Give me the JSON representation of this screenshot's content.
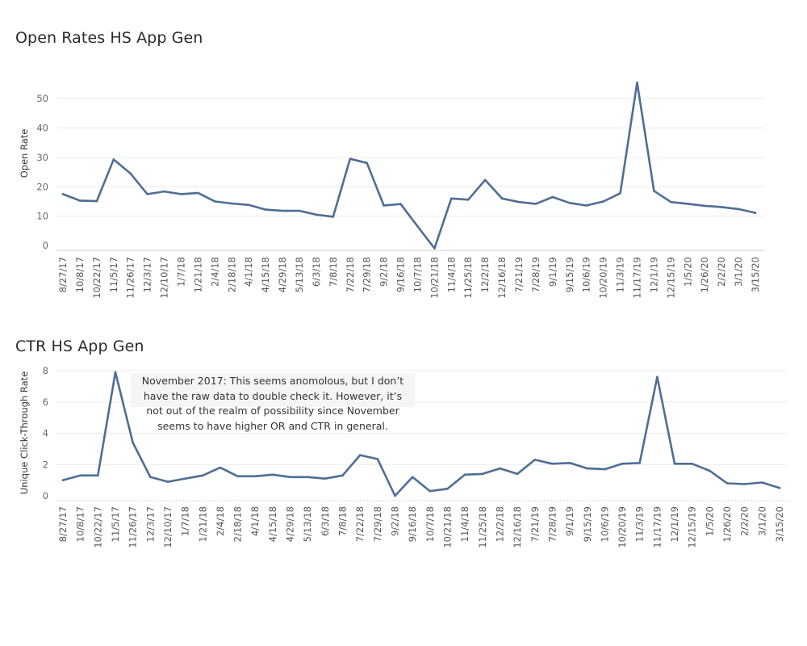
{
  "chart_data": [
    {
      "type": "line",
      "title": "Open Rates HS App Gen",
      "xlabel": "",
      "ylabel": "Open Rate",
      "ylim": [
        0,
        55
      ],
      "yticks": [
        0,
        10,
        20,
        30,
        40,
        50
      ],
      "grid": true,
      "color": "#4e6e96",
      "x_tick_labels": [
        "8/27/17",
        "10/8/17",
        "10/22/17",
        "11/5/17",
        "11/26/17",
        "12/3/17",
        "12/10/17",
        "1/7/18",
        "1/21/18",
        "2/4/18",
        "2/18/18",
        "4/1/18",
        "4/15/18",
        "4/29/18",
        "5/13/18",
        "6/3/18",
        "7/8/18",
        "7/22/18",
        "7/29/18",
        "9/2/18",
        "9/16/18",
        "10/7/18",
        "10/21/18",
        "11/4/18",
        "11/25/18",
        "12/2/18",
        "12/16/18",
        "7/21/19",
        "7/28/19",
        "9/1/19",
        "9/15/19",
        "10/6/19",
        "10/20/19",
        "11/3/19",
        "11/17/19",
        "12/1/19",
        "12/15/19",
        "1/5/20",
        "1/26/20",
        "2/2/20",
        "3/1/20",
        "3/15/20"
      ],
      "values": [
        17.5,
        15.3,
        15.1,
        29.3,
        24.5,
        17.5,
        18.4,
        17.5,
        17.9,
        15.0,
        14.3,
        13.8,
        12.2,
        11.8,
        11.8,
        10.5,
        9.8,
        29.5,
        28.1,
        13.6,
        14.1,
        6.5,
        -1.0,
        16.0,
        15.6,
        22.3,
        16.0,
        14.8,
        14.2,
        16.5,
        14.5,
        13.6,
        15.0,
        17.8,
        55.5,
        18.6,
        14.8,
        14.2,
        13.5,
        13.1,
        12.4,
        11.1
      ]
    },
    {
      "type": "line",
      "title": "CTR HS App Gen",
      "xlabel": "",
      "ylabel": "Unique Click-Through Rate",
      "ylim": [
        0,
        8
      ],
      "yticks": [
        0,
        2,
        4,
        6,
        8
      ],
      "grid": true,
      "color": "#4e6e96",
      "x_tick_labels": [
        "8/27/17",
        "10/8/17",
        "10/22/17",
        "11/5/17",
        "11/26/17",
        "12/3/17",
        "12/10/17",
        "1/7/18",
        "1/21/18",
        "2/4/18",
        "2/18/18",
        "4/1/18",
        "4/15/18",
        "4/29/18",
        "5/13/18",
        "6/3/18",
        "7/8/18",
        "7/22/18",
        "7/29/18",
        "9/2/18",
        "9/16/18",
        "10/7/18",
        "10/21/18",
        "11/4/18",
        "11/25/18",
        "12/2/18",
        "12/16/18",
        "7/21/19",
        "7/28/19",
        "9/1/19",
        "9/15/19",
        "10/6/19",
        "10/20/19",
        "11/3/19",
        "11/17/19",
        "12/1/19",
        "12/15/19",
        "1/5/20",
        "1/26/20",
        "2/2/20",
        "3/1/20",
        "3/15/20"
      ],
      "values": [
        1.0,
        1.3,
        1.3,
        7.9,
        3.4,
        1.2,
        0.9,
        1.1,
        1.3,
        1.8,
        1.25,
        1.25,
        1.35,
        1.2,
        1.2,
        1.1,
        1.3,
        2.6,
        2.35,
        0.0,
        1.2,
        0.3,
        0.45,
        1.35,
        1.4,
        1.75,
        1.4,
        2.3,
        2.05,
        2.1,
        1.75,
        1.7,
        2.05,
        2.1,
        7.6,
        2.05,
        2.05,
        1.6,
        0.8,
        0.75,
        0.85,
        0.5
      ],
      "annotation": "November 2017: This seems anomolous, but I don’t have the raw data to double check it. However, it’s not out of the realm of possibility since November seems to have higher OR and CTR in general."
    }
  ]
}
